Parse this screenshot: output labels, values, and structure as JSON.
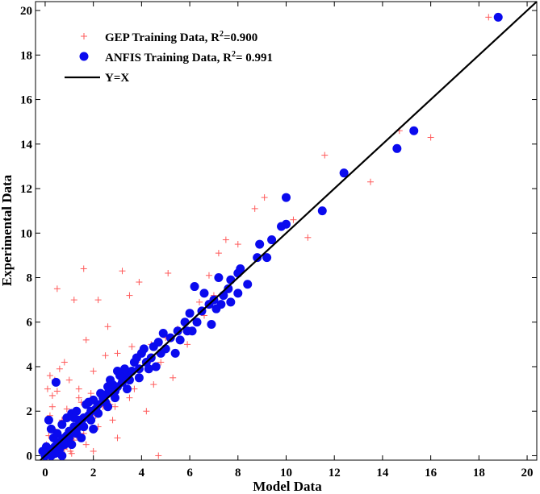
{
  "chart_data": {
    "type": "scatter",
    "title": "",
    "xlabel": "Model Data",
    "ylabel": "Experimental Data",
    "xlim": [
      -0.4,
      20.4
    ],
    "ylim": [
      -0.2,
      20.4
    ],
    "xticks": [
      "0",
      "2",
      "4",
      "6",
      "8",
      "10",
      "12",
      "14",
      "16",
      "18",
      "20"
    ],
    "yticks": [
      "0",
      "2",
      "4",
      "6",
      "8",
      "10",
      "12",
      "14",
      "16",
      "18",
      "20"
    ],
    "grid": false,
    "legend_position": "top-left",
    "colors": {
      "gep": "#ff5a5a",
      "anfis": "#0a0aee",
      "line": "#000000"
    },
    "legend": {
      "gep_prefix": "GEP Training Data, R",
      "gep_r2": "=0.900",
      "anfis_prefix": "ANFIS Training Data, R",
      "anfis_r2": "= 0.991",
      "sup": "2",
      "line_label": "Y=X"
    },
    "series": [
      {
        "name": "GEP Training Data",
        "marker": "plus",
        "points": [
          [
            18.4,
            19.7
          ],
          [
            16.0,
            14.3
          ],
          [
            14.7,
            14.6
          ],
          [
            13.5,
            12.3
          ],
          [
            11.6,
            13.5
          ],
          [
            10.3,
            10.6
          ],
          [
            10.9,
            9.8
          ],
          [
            9.1,
            11.6
          ],
          [
            8.7,
            11.1
          ],
          [
            7.5,
            9.7
          ],
          [
            7.2,
            9.1
          ],
          [
            8.0,
            9.5
          ],
          [
            6.8,
            8.1
          ],
          [
            5.1,
            8.2
          ],
          [
            3.2,
            8.3
          ],
          [
            3.9,
            7.8
          ],
          [
            1.6,
            8.4
          ],
          [
            0.5,
            7.5
          ],
          [
            1.2,
            7.0
          ],
          [
            2.2,
            7.0
          ],
          [
            3.5,
            7.2
          ],
          [
            2.6,
            5.8
          ],
          [
            1.7,
            5.2
          ],
          [
            0.8,
            4.2
          ],
          [
            0.2,
            3.6
          ],
          [
            0.4,
            3.4
          ],
          [
            0.1,
            3.0
          ],
          [
            0.3,
            2.7
          ],
          [
            0.6,
            3.9
          ],
          [
            1.0,
            3.4
          ],
          [
            1.4,
            3.0
          ],
          [
            2.0,
            3.8
          ],
          [
            2.5,
            4.5
          ],
          [
            3.0,
            4.6
          ],
          [
            4.0,
            4.6
          ],
          [
            4.8,
            4.2
          ],
          [
            5.3,
            3.5
          ],
          [
            4.5,
            3.2
          ],
          [
            3.5,
            2.6
          ],
          [
            4.2,
            2.0
          ],
          [
            2.8,
            1.6
          ],
          [
            2.2,
            1.3
          ],
          [
            3.0,
            0.8
          ],
          [
            1.7,
            0.5
          ],
          [
            2.0,
            0.2
          ],
          [
            1.1,
            0.1
          ],
          [
            4.7,
            0.0
          ],
          [
            2.4,
            2.2
          ],
          [
            1.8,
            1.6
          ],
          [
            1.3,
            1.4
          ],
          [
            1.0,
            1.1
          ],
          [
            0.8,
            0.8
          ],
          [
            0.6,
            0.9
          ],
          [
            0.5,
            0.6
          ],
          [
            0.4,
            0.5
          ],
          [
            0.2,
            0.3
          ],
          [
            0.1,
            0.1
          ],
          [
            0.7,
            1.6
          ],
          [
            0.9,
            2.1
          ],
          [
            1.5,
            2.4
          ],
          [
            1.9,
            2.8
          ],
          [
            2.6,
            3.2
          ],
          [
            3.3,
            3.8
          ],
          [
            3.8,
            4.2
          ],
          [
            3.7,
            3.0
          ],
          [
            2.9,
            2.2
          ],
          [
            2.1,
            1.8
          ],
          [
            1.6,
            1.0
          ],
          [
            1.2,
            0.7
          ],
          [
            0.9,
            0.4
          ],
          [
            0.6,
            0.2
          ],
          [
            5.5,
            5.7
          ],
          [
            5.9,
            5.0
          ],
          [
            6.4,
            6.9
          ],
          [
            7.0,
            7.2
          ],
          [
            6.6,
            6.3
          ],
          [
            5.0,
            5.3
          ],
          [
            4.4,
            5.0
          ],
          [
            3.6,
            4.9
          ],
          [
            0.3,
            2.2
          ],
          [
            0.5,
            2.9
          ],
          [
            0.2,
            1.8
          ],
          [
            0.35,
            1.2
          ],
          [
            1.1,
            1.9
          ],
          [
            1.4,
            2.6
          ],
          [
            2.3,
            2.7
          ],
          [
            0.05,
            0.5
          ],
          [
            0.15,
            0.9
          ],
          [
            3.9,
            3.5
          ],
          [
            4.6,
            4.0
          ],
          [
            2.7,
            2.3
          ],
          [
            1.3,
            0.9
          ],
          [
            0.8,
            0.3
          ],
          [
            1.05,
            0.2
          ]
        ]
      },
      {
        "name": "ANFIS Training Data",
        "marker": "dot",
        "points": [
          [
            18.8,
            19.7
          ],
          [
            15.3,
            14.6
          ],
          [
            14.6,
            13.8
          ],
          [
            12.4,
            12.7
          ],
          [
            11.5,
            11.0
          ],
          [
            10.0,
            11.6
          ],
          [
            10.0,
            10.4
          ],
          [
            9.8,
            10.3
          ],
          [
            9.4,
            9.7
          ],
          [
            8.9,
            9.5
          ],
          [
            9.2,
            8.9
          ],
          [
            8.8,
            8.9
          ],
          [
            8.1,
            8.4
          ],
          [
            8.0,
            8.2
          ],
          [
            7.7,
            7.9
          ],
          [
            7.6,
            7.5
          ],
          [
            7.2,
            8.0
          ],
          [
            7.4,
            7.2
          ],
          [
            7.0,
            7.0
          ],
          [
            6.6,
            7.3
          ],
          [
            6.2,
            7.6
          ],
          [
            6.8,
            6.8
          ],
          [
            6.5,
            6.5
          ],
          [
            6.0,
            6.4
          ],
          [
            6.3,
            6.0
          ],
          [
            7.3,
            6.8
          ],
          [
            7.7,
            6.9
          ],
          [
            8.4,
            7.7
          ],
          [
            8.0,
            7.3
          ],
          [
            7.1,
            6.6
          ],
          [
            6.9,
            5.9
          ],
          [
            5.8,
            6.0
          ],
          [
            5.5,
            5.6
          ],
          [
            5.6,
            5.2
          ],
          [
            5.2,
            5.3
          ],
          [
            4.9,
            5.5
          ],
          [
            5.0,
            4.8
          ],
          [
            4.8,
            4.6
          ],
          [
            4.5,
            4.9
          ],
          [
            4.4,
            4.4
          ],
          [
            4.2,
            4.2
          ],
          [
            4.0,
            4.6
          ],
          [
            3.9,
            3.9
          ],
          [
            3.8,
            4.4
          ],
          [
            3.6,
            3.8
          ],
          [
            3.4,
            3.6
          ],
          [
            3.5,
            3.4
          ],
          [
            3.2,
            3.3
          ],
          [
            3.0,
            3.1
          ],
          [
            2.9,
            2.9
          ],
          [
            2.8,
            3.2
          ],
          [
            2.6,
            2.8
          ],
          [
            2.4,
            2.6
          ],
          [
            2.5,
            2.4
          ],
          [
            2.2,
            2.3
          ],
          [
            2.1,
            2.1
          ],
          [
            1.9,
            2.0
          ],
          [
            1.8,
            1.8
          ],
          [
            1.6,
            1.7
          ],
          [
            1.5,
            1.5
          ],
          [
            1.4,
            1.6
          ],
          [
            1.3,
            1.2
          ],
          [
            1.2,
            1.3
          ],
          [
            1.0,
            1.1
          ],
          [
            0.9,
            0.9
          ],
          [
            0.8,
            0.8
          ],
          [
            0.7,
            0.7
          ],
          [
            0.6,
            0.6
          ],
          [
            0.5,
            0.5
          ],
          [
            0.4,
            0.4
          ],
          [
            0.3,
            0.3
          ],
          [
            0.2,
            0.2
          ],
          [
            0.1,
            0.1
          ],
          [
            0.0,
            0.0
          ],
          [
            0.45,
            3.3
          ],
          [
            0.15,
            1.6
          ],
          [
            0.25,
            1.2
          ],
          [
            0.5,
            1.0
          ],
          [
            0.7,
            1.4
          ],
          [
            0.9,
            1.7
          ],
          [
            1.1,
            1.9
          ],
          [
            1.3,
            2.0
          ],
          [
            1.7,
            2.3
          ],
          [
            2.0,
            2.5
          ],
          [
            2.3,
            2.8
          ],
          [
            2.6,
            3.1
          ],
          [
            3.1,
            3.6
          ],
          [
            3.3,
            3.9
          ],
          [
            3.7,
            4.2
          ],
          [
            4.1,
            4.8
          ],
          [
            4.3,
            3.9
          ],
          [
            3.9,
            3.5
          ],
          [
            3.4,
            3.0
          ],
          [
            2.9,
            2.6
          ],
          [
            2.6,
            2.2
          ],
          [
            2.2,
            1.9
          ],
          [
            1.9,
            1.6
          ],
          [
            1.6,
            1.3
          ],
          [
            1.3,
            1.0
          ],
          [
            1.0,
            0.8
          ],
          [
            0.8,
            0.5
          ],
          [
            0.6,
            0.3
          ],
          [
            0.4,
            0.1
          ],
          [
            0.7,
            0.0
          ],
          [
            1.1,
            0.5
          ],
          [
            1.5,
            0.8
          ],
          [
            2.0,
            1.2
          ],
          [
            4.6,
            4.0
          ],
          [
            5.4,
            4.6
          ],
          [
            5.9,
            5.6
          ],
          [
            6.1,
            5.6
          ],
          [
            4.7,
            5.1
          ],
          [
            3.0,
            3.8
          ],
          [
            2.7,
            3.4
          ],
          [
            1.8,
            2.4
          ],
          [
            1.2,
            1.7
          ],
          [
            0.35,
            0.8
          ],
          [
            0.05,
            0.4
          ],
          [
            -0.1,
            0.2
          ],
          [
            0.25,
            0.0
          ]
        ]
      }
    ]
  }
}
